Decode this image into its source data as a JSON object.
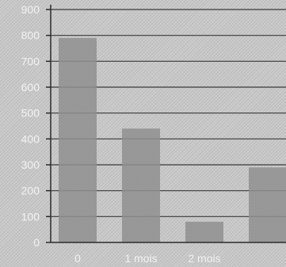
{
  "chart_data": {
    "type": "bar",
    "categories": [
      "0",
      "1 mois",
      "2 mois",
      ""
    ],
    "values": [
      790,
      440,
      80,
      290
    ],
    "ylim": [
      0,
      900
    ],
    "yticks": [
      0,
      100,
      200,
      300,
      400,
      500,
      600,
      700,
      800,
      900
    ],
    "grid": true,
    "legend": "none",
    "colors": {
      "bar": "#8f8f8f",
      "grid": "#3a3a3a",
      "axis": "#2b2b2b",
      "text": "#f2f2f2"
    }
  }
}
